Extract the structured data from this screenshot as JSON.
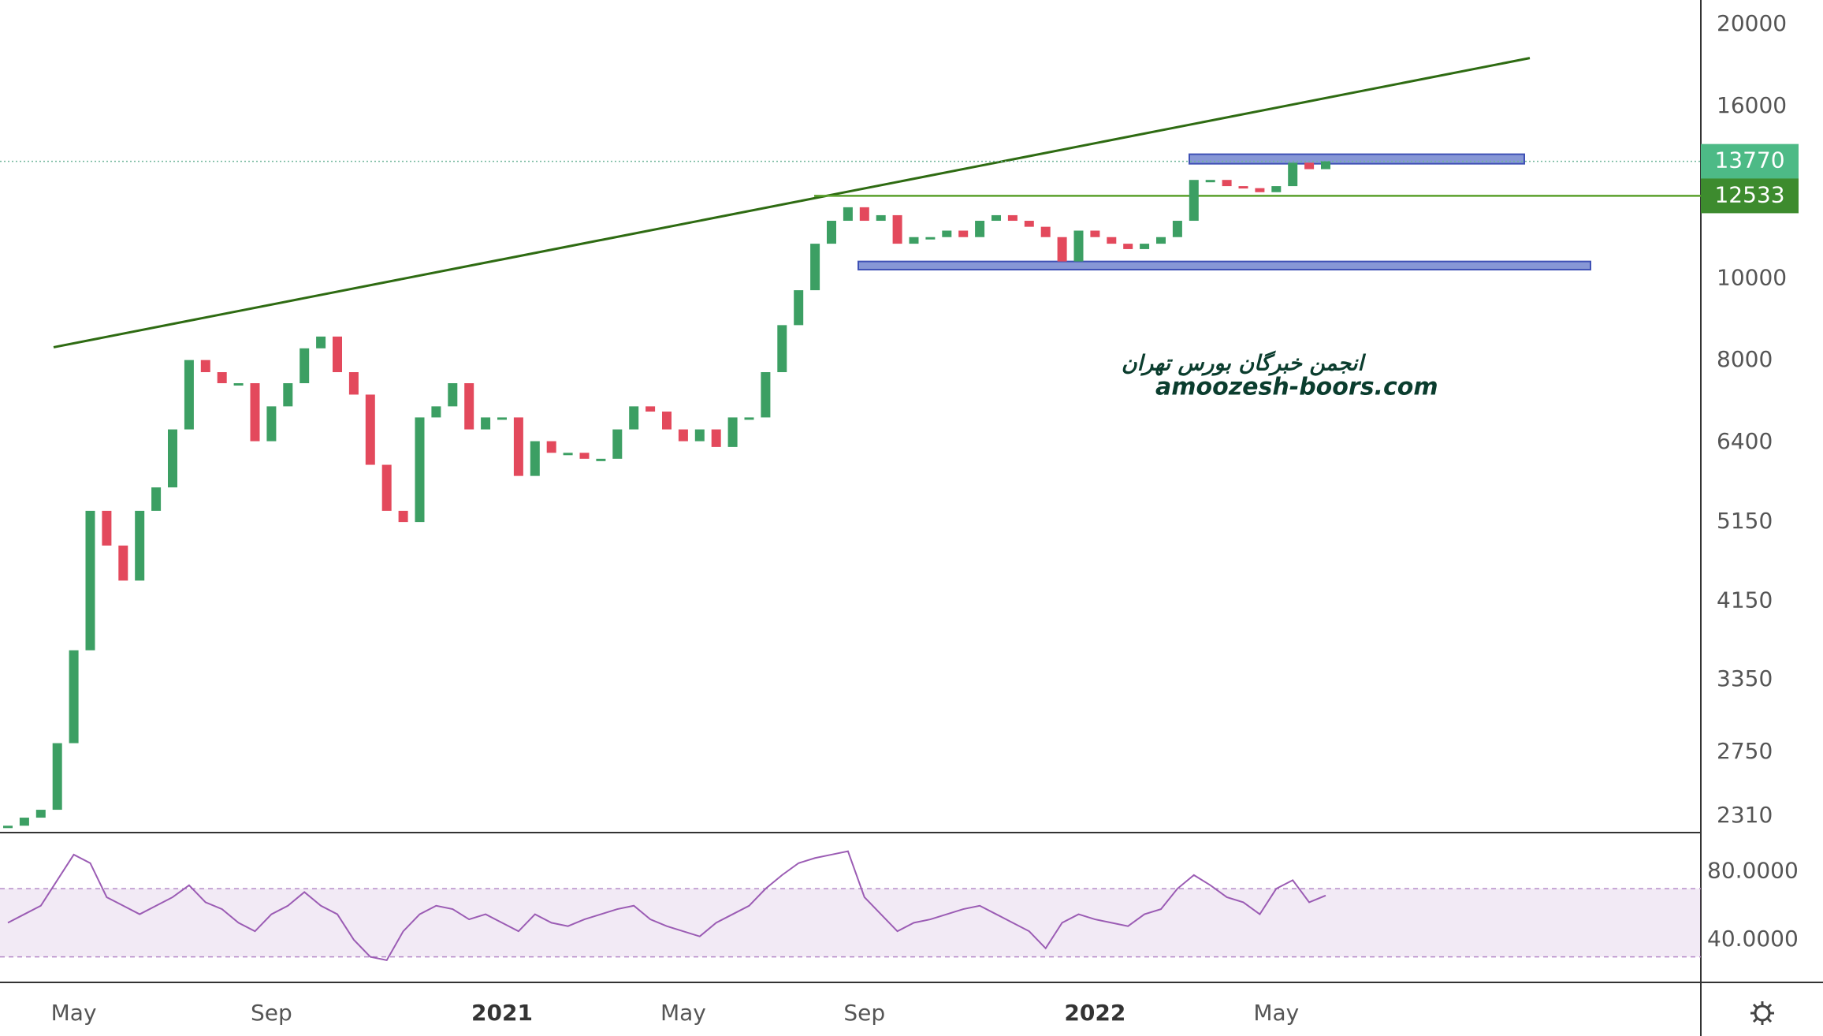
{
  "chart_data": [
    {
      "type": "candlestick",
      "log_scale": true,
      "grid": false,
      "up_color": "#3c9f63",
      "down_color": "#e3495c",
      "categories": [
        null,
        null,
        null,
        null,
        "May",
        null,
        null,
        null,
        null,
        null,
        null,
        null,
        null,
        null,
        null,
        null,
        "Sep",
        null,
        null,
        null,
        null,
        null,
        null,
        null,
        null,
        null,
        null,
        null,
        null,
        null,
        "2021",
        null,
        null,
        null,
        null,
        null,
        null,
        null,
        null,
        null,
        null,
        "May",
        null,
        null,
        null,
        null,
        null,
        null,
        null,
        null,
        null,
        null,
        "Sep",
        null,
        null,
        null,
        null,
        null,
        null,
        null,
        null,
        null,
        null,
        null,
        null,
        null,
        "2022",
        null,
        null,
        null,
        null,
        null,
        null,
        null,
        null,
        null,
        null,
        "May",
        null,
        null,
        null
      ],
      "values": [
        2250,
        2300,
        2350,
        2818,
        3630,
        5310,
        4830,
        4390,
        5310,
        5660,
        6630,
        8010,
        7750,
        7520,
        7520,
        6420,
        7060,
        7520,
        8270,
        8540,
        7750,
        7290,
        6020,
        5310,
        5150,
        6850,
        7060,
        7520,
        6630,
        6850,
        6850,
        5840,
        6420,
        6220,
        6220,
        6120,
        6120,
        6630,
        7060,
        6960,
        6630,
        6420,
        6630,
        6320,
        6850,
        6850,
        7750,
        8810,
        9690,
        11000,
        11710,
        12150,
        11710,
        11890,
        11000,
        11200,
        11200,
        11400,
        11200,
        11710,
        11890,
        11710,
        11520,
        11200,
        10480,
        11400,
        11200,
        11000,
        10840,
        11000,
        11200,
        11710,
        13090,
        13090,
        12870,
        12800,
        12660,
        12870,
        13720,
        13480,
        13770
      ],
      "ylim": [
        2213,
        21380
      ],
      "yticks": [
        2310,
        2750,
        3350,
        4150,
        5150,
        6400,
        8000,
        10000,
        16000,
        20000
      ],
      "trendline": [
        8294,
        18250
      ],
      "zones": [
        [
          13680,
          14040
        ],
        [
          10250,
          10480
        ]
      ],
      "level": 12533,
      "watermark": [
        "انجمن خبرگان بورس تهران",
        "amoozesh-boors.com"
      ]
    },
    {
      "type": "line",
      "color": "#9b5cb4",
      "values": [
        50,
        55,
        60,
        75,
        90,
        85,
        65,
        60,
        55,
        60,
        65,
        72,
        62,
        58,
        50,
        45,
        55,
        60,
        68,
        60,
        55,
        40,
        30,
        28,
        45,
        55,
        60,
        58,
        52,
        55,
        50,
        45,
        55,
        50,
        48,
        52,
        55,
        58,
        60,
        52,
        48,
        45,
        42,
        50,
        55,
        60,
        70,
        78,
        85,
        88,
        90,
        92,
        65,
        55,
        45,
        50,
        52,
        55,
        58,
        60,
        55,
        50,
        45,
        35,
        50,
        55,
        52,
        50,
        48,
        55,
        58,
        70,
        78,
        72,
        65,
        62,
        55,
        70,
        75,
        62,
        66
      ],
      "ylim": [
        15,
        102
      ],
      "yticks": [
        {
          "value": 80,
          "label": "80.0000"
        },
        {
          "value": 40,
          "label": "40.0000"
        }
      ],
      "band": [
        30,
        70
      ]
    }
  ]
}
